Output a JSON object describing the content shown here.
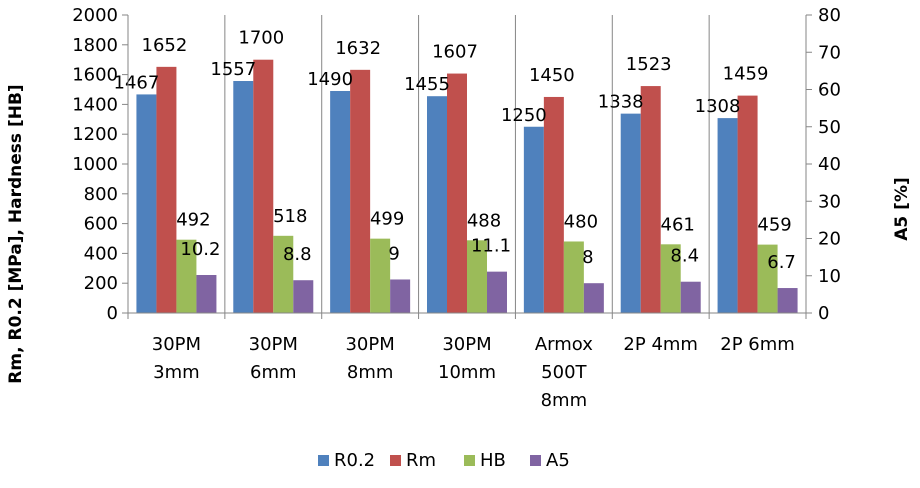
{
  "chart_data": {
    "type": "bar",
    "categories": [
      [
        "30PM",
        "3mm"
      ],
      [
        "30PM",
        "6mm"
      ],
      [
        "30PM",
        "8mm"
      ],
      [
        "30PM",
        "10mm"
      ],
      [
        "Armox",
        "500T",
        "8mm"
      ],
      [
        "2P 4mm"
      ],
      [
        "2P 6mm"
      ]
    ],
    "series": [
      {
        "name": "R0.2",
        "axis": "left",
        "color": "#4F81BD",
        "values": [
          1467,
          1557,
          1490,
          1455,
          1250,
          1338,
          1308
        ]
      },
      {
        "name": "Rm",
        "axis": "left",
        "color": "#C0504D",
        "values": [
          1652,
          1700,
          1632,
          1607,
          1450,
          1523,
          1459
        ]
      },
      {
        "name": "HB",
        "axis": "left",
        "color": "#9BBB59",
        "values": [
          492,
          518,
          499,
          488,
          480,
          461,
          459
        ]
      },
      {
        "name": "A5",
        "axis": "right",
        "color": "#8064A2",
        "values": [
          10.2,
          8.8,
          9,
          11.1,
          8,
          8.4,
          6.7
        ]
      }
    ],
    "ylabel": "Rm, R0.2 [MPa], Hardness [HB]",
    "y2label": "A5 [%]",
    "ylim": [
      0,
      2000
    ],
    "y2lim": [
      0,
      80
    ],
    "yticks": [
      0,
      200,
      400,
      600,
      800,
      1000,
      1200,
      1400,
      1600,
      1800,
      2000
    ],
    "y2ticks": [
      0,
      10,
      20,
      30,
      40,
      50,
      60,
      70,
      80
    ],
    "legend_position": "bottom",
    "grid": false
  }
}
